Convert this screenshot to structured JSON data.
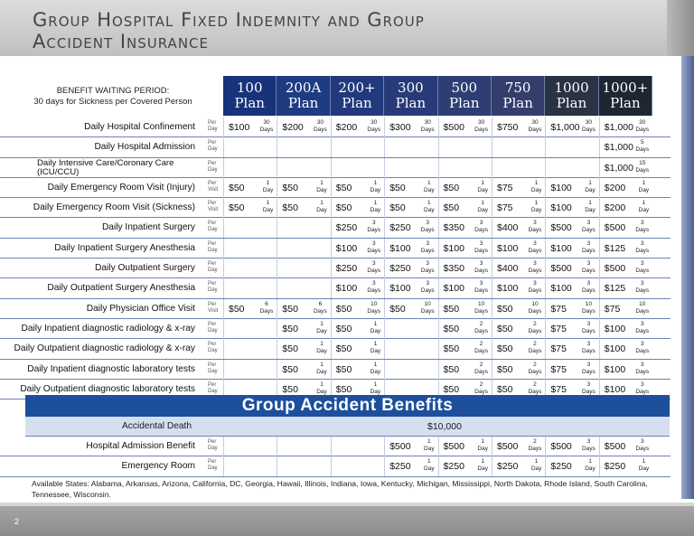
{
  "title": "Group Hospital Fixed Indemnity and Group Accident Insurance",
  "waiting_period": {
    "line1": "BENEFIT WAITING PERIOD:",
    "line2": "30 days for Sickness per Covered Person"
  },
  "plans": [
    {
      "line1": "100",
      "line2": "Plan"
    },
    {
      "line1": "200A",
      "line2": "Plan"
    },
    {
      "line1": "200+",
      "line2": "Plan"
    },
    {
      "line1": "300",
      "line2": "Plan"
    },
    {
      "line1": "500",
      "line2": "Plan"
    },
    {
      "line1": "750",
      "line2": "Plan"
    },
    {
      "line1": "1000",
      "line2": "Plan"
    },
    {
      "line1": "1000+",
      "line2": "Plan"
    }
  ],
  "plan_colors": [
    "#17337a",
    "#1f3b82",
    "#22397d",
    "#283b78",
    "#2e3d73",
    "#343e6d",
    "#2a3244",
    "#1f2633"
  ],
  "benefits": [
    {
      "label": "Daily Hospital Confinement",
      "unit": [
        "Per",
        "Day"
      ],
      "cells": [
        {
          "amt": "$100",
          "days": [
            "30",
            "Days"
          ]
        },
        {
          "amt": "$200",
          "days": [
            "30",
            "Days"
          ]
        },
        {
          "amt": "$200",
          "days": [
            "30",
            "Days"
          ]
        },
        {
          "amt": "$300",
          "days": [
            "30",
            "Days"
          ]
        },
        {
          "amt": "$500",
          "days": [
            "30",
            "Days"
          ]
        },
        {
          "amt": "$750",
          "days": [
            "30",
            "Days"
          ]
        },
        {
          "amt": "$1,000",
          "days": [
            "30",
            "Days"
          ]
        },
        {
          "amt": "$1,000",
          "days": [
            "30",
            "Days"
          ]
        }
      ]
    },
    {
      "label": "Daily Hospital  Admission",
      "unit": [
        "Per",
        "Day"
      ],
      "cells": [
        null,
        null,
        null,
        null,
        null,
        null,
        null,
        {
          "amt": "$1,000",
          "days": [
            "5",
            "Days"
          ]
        }
      ]
    },
    {
      "label": "Daily Intensive Care/Coronary Care (ICU/CCU)",
      "two": true,
      "unit": [
        "Per",
        "Day"
      ],
      "cells": [
        null,
        null,
        null,
        null,
        null,
        null,
        null,
        {
          "amt": "$1,000",
          "days": [
            "15",
            "Days"
          ]
        }
      ]
    },
    {
      "label": "Daily Emergency Room Visit (Injury)",
      "unit": [
        "Per",
        "Visit"
      ],
      "cells": [
        {
          "amt": "$50",
          "days": [
            "1",
            "Day"
          ]
        },
        {
          "amt": "$50",
          "days": [
            "1",
            "Day"
          ]
        },
        {
          "amt": "$50",
          "days": [
            "1",
            "Day"
          ]
        },
        {
          "amt": "$50",
          "days": [
            "1",
            "Day"
          ]
        },
        {
          "amt": "$50",
          "days": [
            "1",
            "Day"
          ]
        },
        {
          "amt": "$75",
          "days": [
            "1",
            "Day"
          ]
        },
        {
          "amt": "$100",
          "days": [
            "1",
            "Day"
          ]
        },
        {
          "amt": "$200",
          "days": [
            "1",
            "Day"
          ]
        }
      ]
    },
    {
      "label": "Daily Emergency Room Visit (Sickness)",
      "unit": [
        "Per",
        "Visit"
      ],
      "cells": [
        {
          "amt": "$50",
          "days": [
            "1",
            "Day"
          ]
        },
        {
          "amt": "$50",
          "days": [
            "1",
            "Day"
          ]
        },
        {
          "amt": "$50",
          "days": [
            "1",
            "Day"
          ]
        },
        {
          "amt": "$50",
          "days": [
            "1",
            "Day"
          ]
        },
        {
          "amt": "$50",
          "days": [
            "1",
            "Day"
          ]
        },
        {
          "amt": "$75",
          "days": [
            "1",
            "Day"
          ]
        },
        {
          "amt": "$100",
          "days": [
            "1",
            "Day"
          ]
        },
        {
          "amt": "$200",
          "days": [
            "1",
            "Day"
          ]
        }
      ]
    },
    {
      "label": "Daily Inpatient Surgery",
      "unit": [
        "Per",
        "Day"
      ],
      "cells": [
        null,
        null,
        {
          "amt": "$250",
          "days": [
            "3",
            "Days"
          ]
        },
        {
          "amt": "$250",
          "days": [
            "3",
            "Days"
          ]
        },
        {
          "amt": "$350",
          "days": [
            "3",
            "Days"
          ]
        },
        {
          "amt": "$400",
          "days": [
            "3",
            "Days"
          ]
        },
        {
          "amt": "$500",
          "days": [
            "3",
            "Days"
          ]
        },
        {
          "amt": "$500",
          "days": [
            "3",
            "Days"
          ]
        }
      ]
    },
    {
      "label": "Daily Inpatient Surgery Anesthesia",
      "unit": [
        "Per",
        "Day"
      ],
      "cells": [
        null,
        null,
        {
          "amt": "$100",
          "days": [
            "3",
            "Days"
          ]
        },
        {
          "amt": "$100",
          "days": [
            "3",
            "Days"
          ]
        },
        {
          "amt": "$100",
          "days": [
            "3",
            "Days"
          ]
        },
        {
          "amt": "$100",
          "days": [
            "3",
            "Days"
          ]
        },
        {
          "amt": "$100",
          "days": [
            "3",
            "Days"
          ]
        },
        {
          "amt": "$125",
          "days": [
            "3",
            "Days"
          ]
        }
      ]
    },
    {
      "label": "Daily Outpatient Surgery",
      "unit": [
        "Per",
        "Day"
      ],
      "cells": [
        null,
        null,
        {
          "amt": "$250",
          "days": [
            "3",
            "Days"
          ]
        },
        {
          "amt": "$250",
          "days": [
            "3",
            "Days"
          ]
        },
        {
          "amt": "$350",
          "days": [
            "3",
            "Days"
          ]
        },
        {
          "amt": "$400",
          "days": [
            "3",
            "Days"
          ]
        },
        {
          "amt": "$500",
          "days": [
            "3",
            "Days"
          ]
        },
        {
          "amt": "$500",
          "days": [
            "3",
            "Days"
          ]
        }
      ]
    },
    {
      "label": "Daily Outpatient Surgery Anesthesia",
      "unit": [
        "Per",
        "Day"
      ],
      "cells": [
        null,
        null,
        {
          "amt": "$100",
          "days": [
            "3",
            "Days"
          ]
        },
        {
          "amt": "$100",
          "days": [
            "3",
            "Days"
          ]
        },
        {
          "amt": "$100",
          "days": [
            "3",
            "Days"
          ]
        },
        {
          "amt": "$100",
          "days": [
            "3",
            "Days"
          ]
        },
        {
          "amt": "$100",
          "days": [
            "3",
            "Days"
          ]
        },
        {
          "amt": "$125",
          "days": [
            "3",
            "Days"
          ]
        }
      ]
    },
    {
      "label": "Daily Physician Office Visit",
      "unit": [
        "Per",
        "Visit"
      ],
      "cells": [
        {
          "amt": "$50",
          "days": [
            "6",
            "Days"
          ]
        },
        {
          "amt": "$50",
          "days": [
            "6",
            "Days"
          ]
        },
        {
          "amt": "$50",
          "days": [
            "10",
            "Days"
          ]
        },
        {
          "amt": "$50",
          "days": [
            "10",
            "Days"
          ]
        },
        {
          "amt": "$50",
          "days": [
            "10",
            "Days"
          ]
        },
        {
          "amt": "$50",
          "days": [
            "10",
            "Days"
          ]
        },
        {
          "amt": "$75",
          "days": [
            "10",
            "Days"
          ]
        },
        {
          "amt": "$75",
          "days": [
            "10",
            "Days"
          ]
        }
      ]
    },
    {
      "label": "Daily Inpatient diagnostic radiology & x-ray",
      "unit": [
        "Per",
        "Day"
      ],
      "cells": [
        null,
        {
          "amt": "$50",
          "days": [
            "1",
            "Day"
          ]
        },
        {
          "amt": "$50",
          "days": [
            "1",
            "Day"
          ]
        },
        null,
        {
          "amt": "$50",
          "days": [
            "2",
            "Days"
          ]
        },
        {
          "amt": "$50",
          "days": [
            "2",
            "Days"
          ]
        },
        {
          "amt": "$75",
          "days": [
            "3",
            "Days"
          ]
        },
        {
          "amt": "$100",
          "days": [
            "3",
            "Days"
          ]
        }
      ]
    },
    {
      "label": "Daily Outpatient diagnostic radiology & x-ray",
      "unit": [
        "Per",
        "Day"
      ],
      "cells": [
        null,
        {
          "amt": "$50",
          "days": [
            "1",
            "Day"
          ]
        },
        {
          "amt": "$50",
          "days": [
            "1",
            "Day"
          ]
        },
        null,
        {
          "amt": "$50",
          "days": [
            "2",
            "Days"
          ]
        },
        {
          "amt": "$50",
          "days": [
            "2",
            "Days"
          ]
        },
        {
          "amt": "$75",
          "days": [
            "3",
            "Days"
          ]
        },
        {
          "amt": "$100",
          "days": [
            "3",
            "Days"
          ]
        }
      ]
    },
    {
      "label": "Daily Inpatient diagnostic laboratory tests",
      "unit": [
        "Per",
        "Day"
      ],
      "cells": [
        null,
        {
          "amt": "$50",
          "days": [
            "1",
            "Day"
          ]
        },
        {
          "amt": "$50",
          "days": [
            "1",
            "Day"
          ]
        },
        null,
        {
          "amt": "$50",
          "days": [
            "2",
            "Days"
          ]
        },
        {
          "amt": "$50",
          "days": [
            "2",
            "Days"
          ]
        },
        {
          "amt": "$75",
          "days": [
            "3",
            "Days"
          ]
        },
        {
          "amt": "$100",
          "days": [
            "3",
            "Days"
          ]
        }
      ]
    },
    {
      "label": "Daily Outpatient diagnostic laboratory tests",
      "unit": [
        "Per",
        "Day"
      ],
      "cells": [
        null,
        {
          "amt": "$50",
          "days": [
            "1",
            "Day"
          ]
        },
        {
          "amt": "$50",
          "days": [
            "1",
            "Day"
          ]
        },
        null,
        {
          "amt": "$50",
          "days": [
            "2",
            "Days"
          ]
        },
        {
          "amt": "$50",
          "days": [
            "2",
            "Days"
          ]
        },
        {
          "amt": "$75",
          "days": [
            "3",
            "Days"
          ]
        },
        {
          "amt": "$100",
          "days": [
            "3",
            "Days"
          ]
        }
      ]
    }
  ],
  "accident": {
    "heading": "Group Accident Benefits",
    "death_label": "Accidental Death",
    "death_value": "$10,000",
    "rows": [
      {
        "label": "Hospital Admission Benefit",
        "unit": [
          "Per",
          "Day"
        ],
        "cells": [
          null,
          null,
          null,
          {
            "amt": "$500",
            "days": [
              "1",
              "Day"
            ]
          },
          {
            "amt": "$500",
            "days": [
              "1",
              "Day"
            ]
          },
          {
            "amt": "$500",
            "days": [
              "2",
              "Days"
            ]
          },
          {
            "amt": "$500",
            "days": [
              "3",
              "Days"
            ]
          },
          {
            "amt": "$500",
            "days": [
              "3",
              "Days"
            ]
          }
        ]
      },
      {
        "label": "Emergency Room",
        "unit": [
          "Per",
          "Day"
        ],
        "cells": [
          null,
          null,
          null,
          {
            "amt": "$250",
            "days": [
              "1",
              "Day"
            ]
          },
          {
            "amt": "$250",
            "days": [
              "1",
              "Day"
            ]
          },
          {
            "amt": "$250",
            "days": [
              "1",
              "Day"
            ]
          },
          {
            "amt": "$250",
            "days": [
              "1",
              "Day"
            ]
          },
          {
            "amt": "$250",
            "days": [
              "1",
              "Day"
            ]
          }
        ]
      }
    ]
  },
  "states": "Available States: Alabama, Arkansas, Arizona, California, DC, Georgia, Hawaii, Illinois, Indiana, Iowa, Kentucky, Michigan, Mississippi, North Dakota, Rhode Island, South Carolina, Tennessee, Wisconsin.",
  "page_number": "2"
}
